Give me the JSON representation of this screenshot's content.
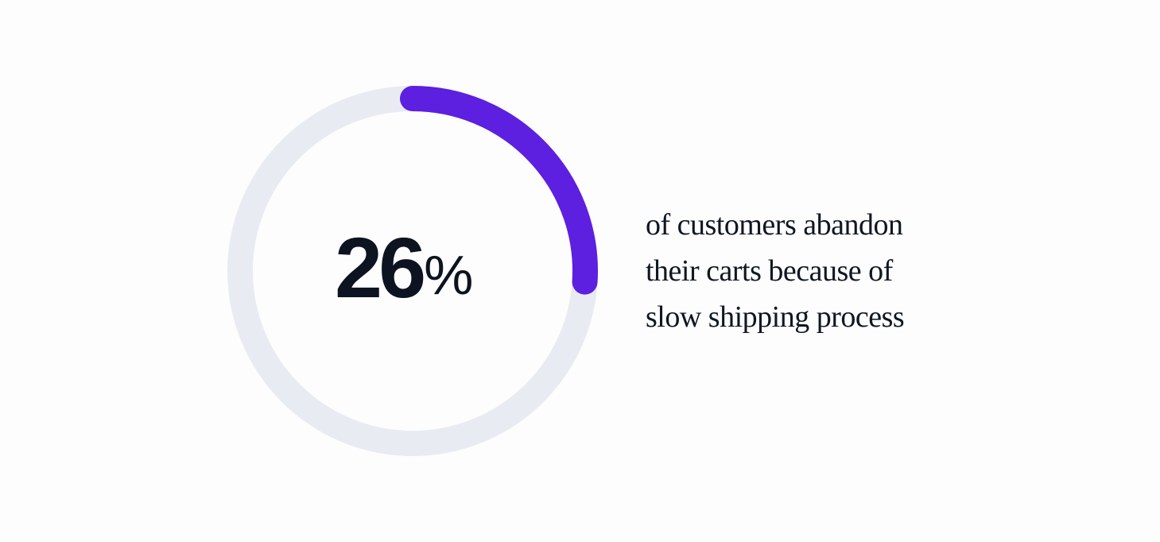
{
  "chart_data": {
    "type": "donut",
    "value": 26,
    "max": 100,
    "value_label": "26",
    "unit_label": "%",
    "caption_lines": [
      "of customers abandon",
      "their carts because of",
      "slow shipping process"
    ],
    "colors": {
      "progress": "#5d1fe0",
      "track": "#e8ecf2",
      "text": "#0d1320",
      "background": "#fdfdfe"
    }
  }
}
